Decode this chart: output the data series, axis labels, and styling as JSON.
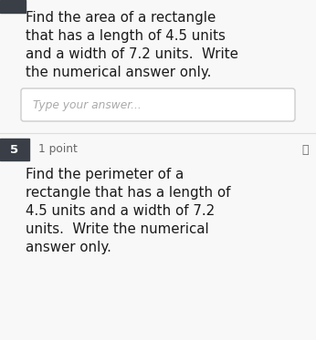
{
  "bg_color": "#f8f8f8",
  "top_bar_color": "#3a3f47",
  "question_number_5_color": "#3a3f47",
  "q4_text_lines": [
    "Find the area of a rectangle",
    "that has a length of 4.5 units",
    "and a width of 7.2 units.  Write",
    "the numerical answer only."
  ],
  "input_placeholder": "Type your answer...",
  "divider_color": "#dddddd",
  "q5_label": "5",
  "q5_points": "1 point",
  "q5_text_lines": [
    "Find the perimeter of a",
    "rectangle that has a length of",
    "4.5 units and a width of 7.2",
    "units.  Write the numerical",
    "answer only."
  ],
  "text_color": "#1a1a1a",
  "light_text_color": "#666666",
  "input_border_color": "#cccccc",
  "input_bg_color": "#ffffff",
  "font_size_main": 10.8,
  "font_size_small": 8.8,
  "font_size_label": 9.5
}
